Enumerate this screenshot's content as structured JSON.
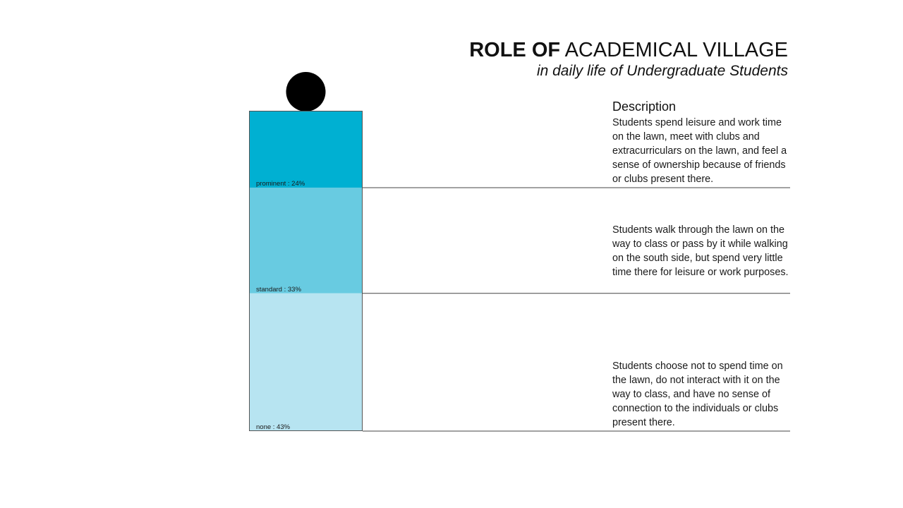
{
  "title": {
    "bold": "ROLE OF",
    "rest": "ACADEMICAL VILLAGE"
  },
  "subtitle": "in daily life of Undergraduate Students",
  "description_heading": "Description",
  "colors": {
    "prominent": "#00b0d2",
    "standard": "#68cbe1",
    "none": "#b7e4f1",
    "head": "#000000"
  },
  "chart_data": {
    "type": "bar",
    "stacked": true,
    "categories": [
      "prominent",
      "standard",
      "none"
    ],
    "values": [
      24,
      33,
      43
    ],
    "labels": [
      "prominent : 24%",
      "standard : 33%",
      "none : 43%"
    ],
    "descriptions": [
      "Students spend leisure and work time on the lawn, meet with clubs and extracurriculars on the lawn, and feel a sense of ownership because of friends or clubs present there.",
      "Students walk through the lawn on the way to class or pass by it while walking on the south side, but spend very little time there for leisure or work purposes.",
      "Students choose not to spend time on the lawn, do not interact with it on the way to class, and have no sense of connection to the individuals or clubs present there."
    ]
  }
}
